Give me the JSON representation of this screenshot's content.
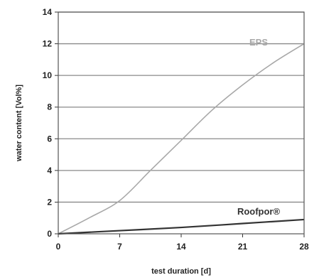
{
  "chart_data": {
    "type": "line",
    "title": "",
    "xlabel": "test duration [d]",
    "ylabel": "water content [Vol%]",
    "xlim": [
      0,
      28
    ],
    "ylim": [
      0,
      14
    ],
    "x_ticks": [
      "0",
      "7",
      "14",
      "21",
      "28"
    ],
    "y_ticks": [
      "0",
      "2",
      "4",
      "6",
      "8",
      "10",
      "12",
      "14"
    ],
    "grid": "horizontal",
    "series": [
      {
        "name": "EPS",
        "color": "#a8a8a8",
        "x": [
          0,
          3.5,
          7,
          10.5,
          14,
          17.5,
          21,
          24.5,
          28
        ],
        "y": [
          0,
          1.0,
          2.1,
          4.0,
          5.9,
          7.8,
          9.4,
          10.8,
          12.0
        ]
      },
      {
        "name": "Roofpor®",
        "color": "#333333",
        "x": [
          0,
          7,
          14,
          21,
          28
        ],
        "y": [
          0,
          0.2,
          0.4,
          0.65,
          0.9
        ]
      }
    ]
  }
}
